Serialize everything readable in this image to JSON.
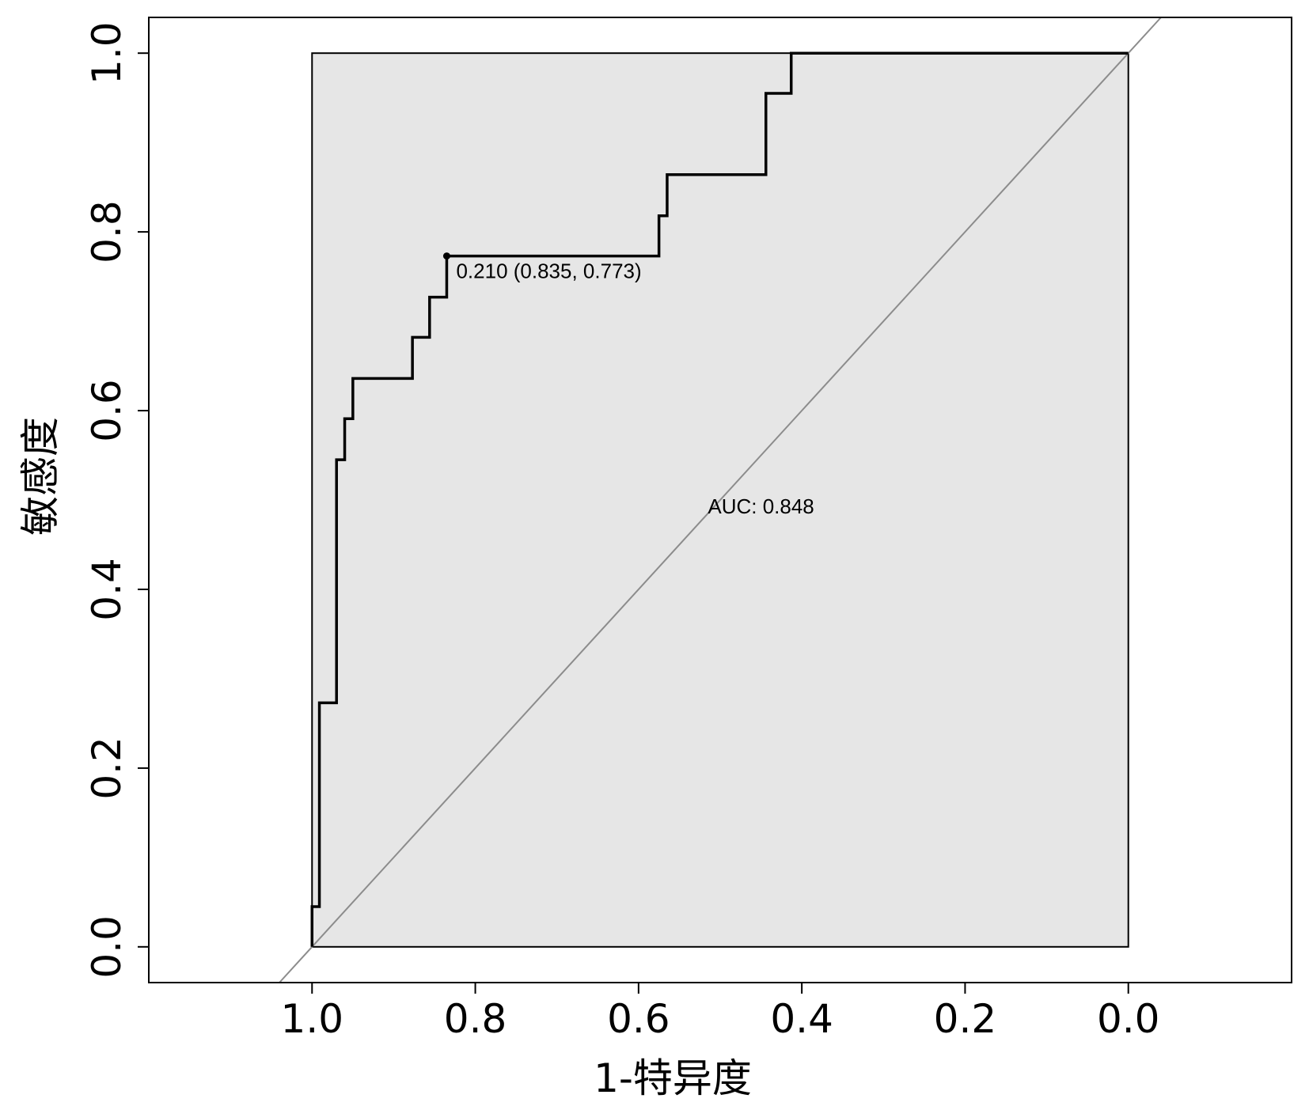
{
  "chart_data": {
    "type": "line",
    "subtype": "roc",
    "xlabel": "1-特异度",
    "ylabel": "敏感度",
    "x_reversed": true,
    "xlim": [
      1.2,
      -0.2
    ],
    "ylim": [
      -0.04,
      1.04
    ],
    "x_ticks": [
      1.0,
      0.8,
      0.6,
      0.4,
      0.2,
      0.0
    ],
    "x_tick_labels": [
      "1.0",
      "0.8",
      "0.6",
      "0.4",
      "0.2",
      "0.0"
    ],
    "y_ticks": [
      0.0,
      0.2,
      0.4,
      0.6,
      0.8,
      1.0
    ],
    "y_tick_labels": [
      "0.0",
      "0.2",
      "0.4",
      "0.6",
      "0.8",
      "1.0"
    ],
    "grid": false,
    "auc_fill_color": "#e6e6e6",
    "curve_color": "#000000",
    "diagonal_color": "#8c8c8c",
    "series": [
      {
        "specificity": [
          1.0,
          1.0,
          0.991,
          0.991,
          0.97,
          0.97,
          0.96,
          0.96,
          0.95,
          0.95,
          0.877,
          0.877,
          0.856,
          0.856,
          0.835,
          0.835,
          0.575,
          0.575,
          0.565,
          0.565,
          0.444,
          0.444,
          0.413,
          0.413,
          0.0
        ],
        "sensitivity": [
          0.0,
          0.045,
          0.045,
          0.273,
          0.273,
          0.545,
          0.545,
          0.591,
          0.591,
          0.636,
          0.636,
          0.682,
          0.682,
          0.727,
          0.727,
          0.773,
          0.773,
          0.818,
          0.818,
          0.864,
          0.864,
          0.955,
          0.955,
          1.0,
          1.0
        ]
      }
    ],
    "threshold_point": {
      "specificity": 0.835,
      "sensitivity": 0.773
    },
    "threshold_label": "0.210 (0.835, 0.773)",
    "auc_label": "AUC: 0.848",
    "auc_label_pos": {
      "specificity": 0.45,
      "sensitivity": 0.485
    }
  }
}
